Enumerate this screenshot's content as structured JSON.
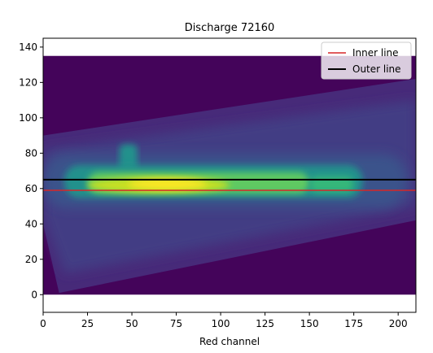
{
  "chart_data": {
    "type": "heatmap",
    "title": "Discharge 72160",
    "xlabel": "Red channel",
    "ylabel": "",
    "xlim": [
      0,
      210
    ],
    "ylim": [
      -10,
      145
    ],
    "xticks": [
      0,
      25,
      50,
      75,
      100,
      125,
      150,
      175,
      200
    ],
    "yticks": [
      0,
      20,
      40,
      60,
      80,
      100,
      120,
      140
    ],
    "grid": false,
    "colormap": "viridis",
    "image_extent": {
      "x": [
        0,
        210
      ],
      "y": [
        0,
        135
      ]
    },
    "image_region_left_edge": [
      [
        0,
        135
      ],
      [
        0,
        40
      ],
      [
        9,
        0
      ]
    ],
    "image_region_top_edge": [
      [
        0,
        90
      ],
      [
        210,
        122
      ]
    ],
    "image_region_bottom_edge": [
      [
        9,
        1
      ],
      [
        210,
        42
      ]
    ],
    "emission_band": {
      "center_y": 62,
      "peak_x": 65,
      "half_thickness": 8,
      "bright_x_range": [
        25,
        150
      ],
      "secondary_bright_x_range": [
        150,
        175
      ],
      "spur": {
        "x": 48,
        "y_from": 68,
        "y_to": 85
      }
    },
    "lines": [
      {
        "name": "Inner line",
        "y": 59,
        "color": "#d62728"
      },
      {
        "name": "Outer line",
        "y": 65,
        "color": "#000000"
      }
    ],
    "legend": {
      "position": "top-right",
      "entries": [
        {
          "label": "Inner line",
          "color": "#d62728"
        },
        {
          "label": "Outer line",
          "color": "#000000"
        }
      ]
    }
  }
}
